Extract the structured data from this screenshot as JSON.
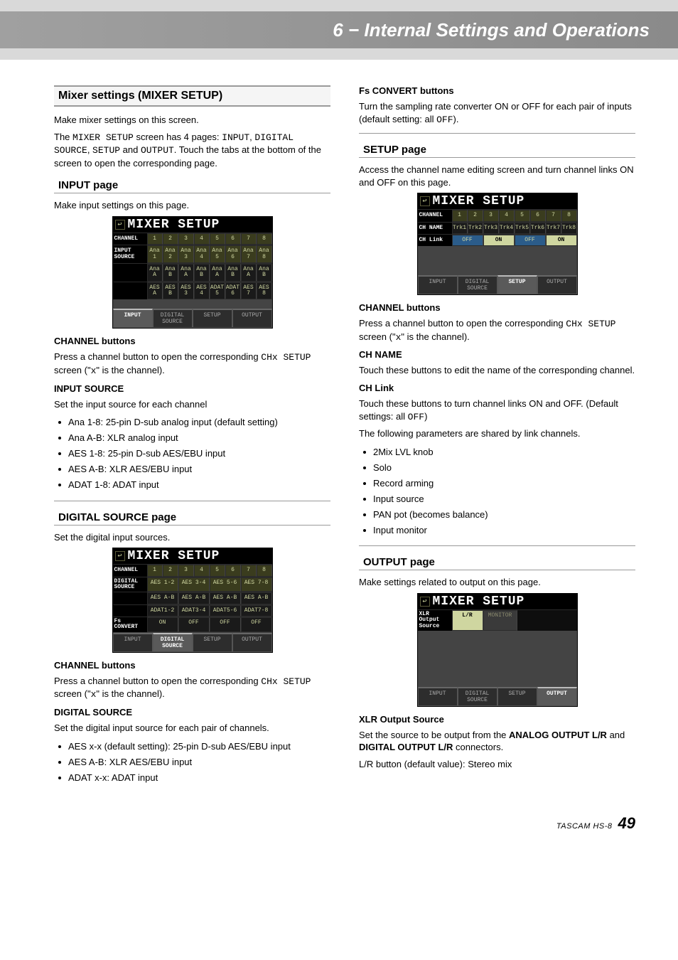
{
  "header": {
    "title": "6 − Internal Settings and Operations"
  },
  "footer": {
    "model": "TASCAM  HS-8",
    "page": "49"
  },
  "left": {
    "mixer_title": "Mixer settings (MIXER SETUP)",
    "mixer_p1": "Make mixer settings on this screen.",
    "mixer_p2a": "The ",
    "mixer_p2_code1": "MIXER SETUP",
    "mixer_p2b": " screen has 4 pages: ",
    "mixer_p2_code2": "INPUT",
    "mixer_p2c": ", ",
    "mixer_p2_code3": "DIGITAL SOURCE",
    "mixer_p2d": ", ",
    "mixer_p2_code4": "SETUP",
    "mixer_p2e": " and ",
    "mixer_p2_code5": "OUTPUT",
    "mixer_p2f": ". Touch the tabs at the bottom of the screen to open the corresponding page.",
    "input_title": "INPUT page",
    "input_p1": "Make input settings on this page.",
    "chbtn_h": "CHANNEL buttons",
    "chbtn_p_a": "Press a channel button to open the corresponding ",
    "chbtn_code1": "CHx SETUP",
    "chbtn_p_b": " screen (\"",
    "chbtn_code2": "x",
    "chbtn_p_c": "\" is the channel).",
    "insrc_h": "INPUT SOURCE",
    "insrc_p": "Set the input source for each channel",
    "insrc_li": [
      "Ana 1-8: 25-pin D-sub analog input (default setting)",
      "Ana A-B: XLR analog input",
      "AES 1-8: 25-pin D-sub AES/EBU input",
      "AES A-B: XLR AES/EBU input",
      "ADAT 1-8: ADAT input"
    ],
    "dsrc_title": "DIGITAL SOURCE page",
    "dsrc_p": "Set the digital input sources.",
    "dsrc_h": "DIGITAL SOURCE",
    "dsrc_p2": "Set the digital input source for each pair of channels.",
    "dsrc_li": [
      "AES x-x (default setting): 25-pin D-sub AES/EBU input",
      "AES A-B: XLR AES/EBU input",
      "ADAT x-x: ADAT input"
    ],
    "lcd_input": {
      "title": "MIXER SETUP",
      "row_channel_label": "CHANNEL",
      "channels": [
        "1",
        "2",
        "3",
        "4",
        "5",
        "6",
        "7",
        "8"
      ],
      "row_src_label": "INPUT\nSOURCE",
      "row1": [
        "Ana\n1",
        "Ana\n2",
        "Ana\n3",
        "Ana\n4",
        "Ana\n5",
        "Ana\n6",
        "Ana\n7",
        "Ana\n8"
      ],
      "row2": [
        "Ana\nA",
        "Ana\nB",
        "Ana\nA",
        "Ana\nB",
        "Ana\nA",
        "Ana\nB",
        "Ana\nA",
        "Ana\nB"
      ],
      "row3": [
        "AES\nA",
        "AES\nB",
        "AES\n3",
        "AES\n4",
        "ADAT\n5",
        "ADAT\n6",
        "AES\n7",
        "AES\n8"
      ],
      "tabs": [
        "INPUT",
        "DIGITAL\nSOURCE",
        "SETUP",
        "OUTPUT"
      ],
      "active_tab": 0
    },
    "lcd_dsrc": {
      "title": "MIXER SETUP",
      "row_channel_label": "CHANNEL",
      "channels": [
        "1",
        "2",
        "3",
        "4",
        "5",
        "6",
        "7",
        "8"
      ],
      "dlabel": "DIGITAL\nSOURCE",
      "d1": [
        "AES 1-2",
        "AES 3-4",
        "AES 5-6",
        "AES 7-8"
      ],
      "d2": [
        "AES A-B",
        "AES A-B",
        "AES A-B",
        "AES A-B"
      ],
      "d3": [
        "ADAT1-2",
        "ADAT3-4",
        "ADAT5-6",
        "ADAT7-8"
      ],
      "fs_label": "Fs\nCONVERT",
      "fs": [
        "ON",
        "OFF",
        "OFF",
        "OFF"
      ],
      "tabs": [
        "INPUT",
        "DIGITAL\nSOURCE",
        "SETUP",
        "OUTPUT"
      ],
      "active_tab": 1
    }
  },
  "right": {
    "fs_h": "Fs CONVERT buttons",
    "fs_p_a": "Turn the sampling rate converter ON or OFF for each pair of inputs (default setting: all ",
    "fs_code": "OFF",
    "fs_p_b": ").",
    "setup_title": "SETUP page",
    "setup_p": "Access the channel name editing screen and turn channel links ON and OFF on this page.",
    "chname_h": "CH NAME",
    "chname_p": "Touch these buttons to edit the name of the corresponding channel.",
    "chlink_h": "CH Link",
    "chlink_p_a": "Touch these buttons to turn channel links ON and OFF. (Default settings: all ",
    "chlink_code": "OFF",
    "chlink_p_b": ")",
    "chlink_p2": "The following parameters are shared by link channels.",
    "chlink_li": [
      "2Mix LVL knob",
      "Solo",
      "Record arming",
      "Input source",
      "PAN pot (becomes balance)",
      "Input monitor"
    ],
    "out_title": "OUTPUT page",
    "out_p": "Make settings related to output on this page.",
    "xlr_h": "XLR Output Source",
    "xlr_p_a": "Set the source to be output from the ",
    "xlr_b1": "ANALOG OUTPUT L/R",
    "xlr_p_b": " and ",
    "xlr_b2": "DIGITAL OUTPUT L/R",
    "xlr_p_c": " connectors.",
    "xlr_p2": "L/R button (default value): Stereo mix",
    "lcd_setup": {
      "title": "MIXER SETUP",
      "row_channel_label": "CHANNEL",
      "channels": [
        "1",
        "2",
        "3",
        "4",
        "5",
        "6",
        "7",
        "8"
      ],
      "chname_label": "CH NAME",
      "chnames": [
        "Trk1",
        "Trk2",
        "Trk3",
        "Trk4",
        "Trk5",
        "Trk6",
        "Trk7",
        "Trk8"
      ],
      "chlink_label": "CH Link",
      "chlinks": [
        "OFF",
        "ON",
        "OFF",
        "ON"
      ],
      "tabs": [
        "INPUT",
        "DIGITAL\nSOURCE",
        "SETUP",
        "OUTPUT"
      ],
      "active_tab": 2
    },
    "lcd_output": {
      "title": "MIXER SETUP",
      "xlr_label": "XLR\nOutput\nSource",
      "btns": [
        "L/R",
        "MONITOR"
      ],
      "tabs": [
        "INPUT",
        "DIGITAL\nSOURCE",
        "SETUP",
        "OUTPUT"
      ],
      "active_tab": 3
    }
  }
}
